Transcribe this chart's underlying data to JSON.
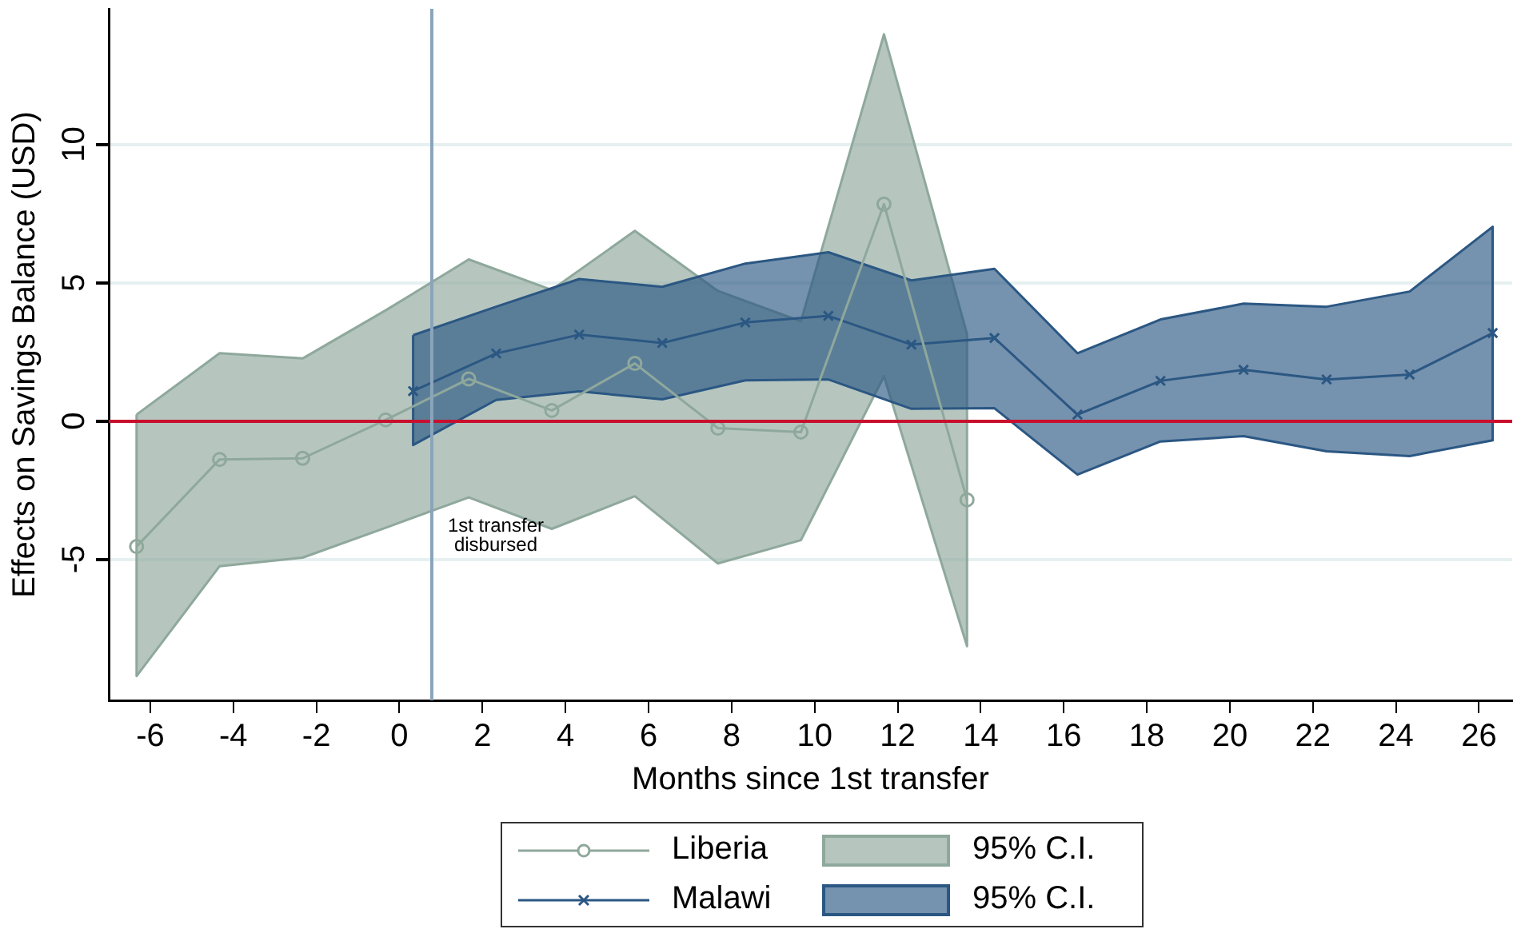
{
  "chart_data": {
    "type": "line",
    "xlabel": "Months since 1st transfer",
    "ylabel": "Effects on Savings Balance (USD)",
    "xlim": [
      -7,
      26.8
    ],
    "xticks": [
      -6,
      -4,
      -2,
      0,
      2,
      4,
      6,
      8,
      10,
      12,
      14,
      16,
      18,
      20,
      22,
      24,
      26
    ],
    "ylim": [
      -10.1,
      14.9
    ],
    "yticks": [
      -5,
      0,
      5,
      10
    ],
    "grid": "y",
    "legend": "bottom",
    "annotations": [
      "95% C.I.",
      "95% C.I."
    ],
    "ref_lines": [
      {
        "axis": "y",
        "value": 0,
        "color": "#c8102e"
      },
      {
        "axis": "x",
        "value": 0.78,
        "color": "#8aa4bb",
        "label": "1st transfer disbursed"
      }
    ],
    "series": [
      {
        "name": "Liberia",
        "color": "#8fa89c",
        "marker": "circle",
        "x": [
          -6.33,
          -4.33,
          -2.33,
          -0.33,
          1.67,
          3.67,
          5.67,
          7.67,
          9.67,
          11.67,
          13.67
        ],
        "values": [
          -4.54,
          -1.39,
          -1.35,
          0.04,
          1.52,
          0.38,
          2.08,
          -0.26,
          -0.4,
          7.84,
          -2.85
        ],
        "lower": [
          -9.22,
          -5.25,
          -4.94,
          -3.86,
          -2.76,
          -3.9,
          -2.72,
          -5.15,
          -4.31,
          1.62,
          -8.14
        ],
        "upper": [
          0.23,
          2.45,
          2.26,
          4.0,
          5.84,
          4.74,
          6.87,
          4.7,
          3.6,
          13.98,
          3.14
        ]
      },
      {
        "name": "Malawi",
        "color": "#2b5783",
        "marker": "cross",
        "x": [
          0.33,
          2.33,
          4.33,
          6.33,
          8.33,
          10.33,
          12.33,
          14.33,
          16.33,
          18.33,
          20.33,
          22.33,
          24.33,
          26.33
        ],
        "values": [
          1.08,
          2.44,
          3.12,
          2.82,
          3.56,
          3.8,
          2.76,
          3.0,
          0.23,
          1.45,
          1.85,
          1.5,
          1.68,
          3.18
        ],
        "lower": [
          -0.87,
          0.76,
          1.07,
          0.78,
          1.47,
          1.5,
          0.44,
          0.46,
          -1.94,
          -0.74,
          -0.55,
          -1.1,
          -1.27,
          -0.7
        ],
        "upper": [
          3.1,
          4.13,
          5.13,
          4.85,
          5.69,
          6.1,
          5.08,
          5.5,
          2.45,
          3.67,
          4.24,
          4.13,
          4.68,
          7.02
        ]
      }
    ]
  }
}
